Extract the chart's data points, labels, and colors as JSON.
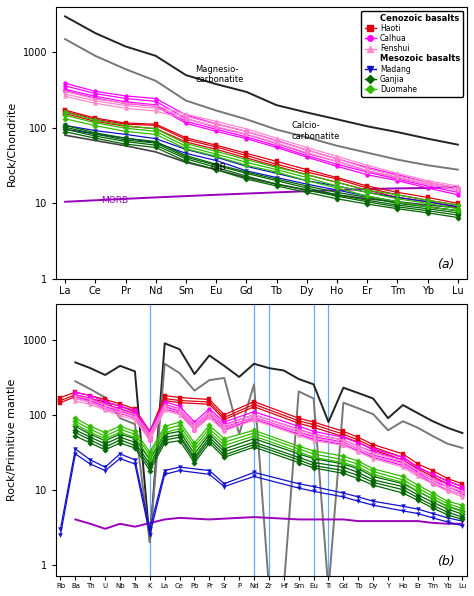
{
  "panel_a": {
    "xlabel_elements": [
      "La",
      "Ce",
      "Pr",
      "Nd",
      "Sm",
      "Eu",
      "Gd",
      "Tb",
      "Dy",
      "Ho",
      "Er",
      "Tm",
      "Yb",
      "Lu"
    ],
    "ylabel": "Rock/Chondrite",
    "panel_label": "(a)",
    "ylim": [
      1,
      4000
    ],
    "magnesio_carb": [
      3000,
      1800,
      1200,
      900,
      500,
      380,
      300,
      200,
      160,
      130,
      105,
      88,
      72,
      60
    ],
    "calcio_carb": [
      1500,
      900,
      600,
      420,
      230,
      170,
      130,
      95,
      75,
      58,
      47,
      38,
      32,
      28
    ],
    "morb": [
      10.5,
      11.0,
      11.5,
      12.0,
      12.5,
      13.0,
      13.5,
      14.0,
      14.5,
      15.0,
      15.5,
      15.8,
      16.0,
      16.5
    ],
    "oib": [
      80,
      68,
      58,
      48,
      35,
      28,
      22,
      18,
      15,
      13,
      11.5,
      10.5,
      9.5,
      8.8
    ],
    "haoti_samples": [
      [
        165,
        130,
        112,
        108,
        70,
        56,
        43,
        33,
        26,
        21,
        16,
        13,
        11,
        9.5
      ],
      [
        155,
        122,
        105,
        98,
        65,
        52,
        40,
        31,
        24,
        19,
        15,
        12,
        10.5,
        9
      ],
      [
        172,
        135,
        116,
        112,
        74,
        59,
        46,
        36,
        28,
        22,
        17,
        14,
        12,
        10
      ]
    ],
    "calhua_samples": [
      [
        360,
        285,
        245,
        225,
        133,
        102,
        82,
        62,
        46,
        36,
        27,
        22,
        18,
        15
      ],
      [
        325,
        262,
        222,
        202,
        122,
        96,
        76,
        58,
        43,
        33,
        26,
        21,
        17,
        14
      ],
      [
        390,
        305,
        265,
        245,
        148,
        113,
        90,
        68,
        51,
        39,
        30,
        24,
        19,
        16
      ],
      [
        310,
        248,
        210,
        194,
        115,
        90,
        72,
        55,
        41,
        31,
        24,
        20,
        16,
        13
      ]
    ],
    "fenshui_samples": [
      [
        305,
        242,
        212,
        197,
        152,
        122,
        97,
        73,
        55,
        42,
        32,
        25,
        20,
        17
      ],
      [
        282,
        228,
        198,
        182,
        142,
        112,
        90,
        67,
        51,
        39,
        29,
        23,
        19,
        16
      ],
      [
        262,
        212,
        182,
        167,
        132,
        104,
        83,
        63,
        47,
        36,
        27,
        22,
        18,
        15
      ]
    ],
    "madang_samples": [
      [
        108,
        92,
        82,
        72,
        52,
        41,
        31,
        25,
        20,
        17,
        14,
        12,
        10.5,
        9
      ],
      [
        96,
        83,
        73,
        64,
        46,
        37,
        27,
        22,
        18,
        15,
        12.5,
        10.5,
        9,
        8
      ]
    ],
    "ganjia_samples": [
      [
        108,
        86,
        73,
        66,
        43,
        33,
        26,
        21,
        17,
        14,
        12,
        10,
        9,
        8
      ],
      [
        96,
        78,
        66,
        59,
        39,
        30,
        23,
        18,
        15,
        12.5,
        10.5,
        9,
        8,
        7
      ],
      [
        89,
        73,
        61,
        55,
        36,
        28,
        21,
        17,
        14,
        11.5,
        9.8,
        8.5,
        7.5,
        6.5
      ],
      [
        102,
        83,
        69,
        63,
        41,
        32,
        25,
        20,
        16,
        13,
        11,
        9.5,
        8.5,
        7.5
      ]
    ],
    "duomahe_samples": [
      [
        162,
        127,
        107,
        97,
        62,
        49,
        38,
        30,
        24,
        19,
        15,
        13,
        11,
        9.5
      ],
      [
        147,
        117,
        99,
        90,
        57,
        45,
        35,
        28,
        22,
        17,
        14,
        11.5,
        10,
        8.5
      ],
      [
        132,
        107,
        90,
        82,
        53,
        42,
        32,
        26,
        20,
        16,
        12.5,
        10.5,
        9,
        8
      ]
    ]
  },
  "panel_b": {
    "xlabel_elements": [
      "Rb",
      "Ba",
      "Th",
      "U",
      "Nb",
      "Ta",
      "K",
      "La",
      "Ce",
      "Pb",
      "Pr",
      "Sr",
      "P",
      "Nd",
      "Zr",
      "Hf",
      "Sm",
      "Eu",
      "Ti",
      "Gd",
      "Tb",
      "Dy",
      "Y",
      "Ho",
      "Er",
      "Tm",
      "Yb",
      "Lu"
    ],
    "ylabel": "Rock/Primitive mantle",
    "panel_label": "(b)",
    "ylim": [
      0.7,
      3000
    ],
    "vline_indices": [
      6,
      13,
      14,
      17,
      18
    ],
    "magnesio_b": [
      null,
      500,
      420,
      340,
      450,
      380,
      2,
      900,
      750,
      350,
      620,
      450,
      320,
      480,
      420,
      390,
      300,
      255,
      80,
      230,
      195,
      165,
      90,
      135,
      105,
      82,
      67,
      57
    ],
    "calcio_b": [
      null,
      280,
      220,
      170,
      90,
      75,
      2,
      480,
      360,
      210,
      290,
      310,
      55,
      255,
      0.5,
      0.5,
      205,
      165,
      0.45,
      145,
      122,
      102,
      62,
      82,
      67,
      52,
      41,
      36
    ],
    "morb_b": [
      null,
      4,
      3.5,
      3,
      3.5,
      3.2,
      null,
      4,
      4.2,
      null,
      4,
      null,
      null,
      4.3,
      null,
      null,
      4,
      4,
      null,
      4,
      3.8,
      3.8,
      null,
      3.8,
      3.8,
      3.6,
      3.5,
      3.5
    ],
    "haoti_samples": [
      [
        170,
        200,
        180,
        160,
        140,
        120,
        60,
        180,
        170,
        null,
        160,
        100,
        null,
        150,
        null,
        null,
        90,
        80,
        null,
        60,
        50,
        40,
        null,
        30,
        22,
        18,
        14,
        12
      ],
      [
        155,
        185,
        165,
        148,
        130,
        110,
        55,
        165,
        155,
        null,
        148,
        92,
        null,
        138,
        null,
        null,
        83,
        74,
        null,
        55,
        46,
        37,
        null,
        27,
        20,
        16,
        13,
        11
      ],
      [
        145,
        175,
        155,
        138,
        120,
        102,
        50,
        155,
        145,
        null,
        138,
        86,
        null,
        128,
        null,
        null,
        77,
        68,
        null,
        51,
        43,
        34,
        null,
        25,
        19,
        15,
        12,
        10
      ]
    ],
    "calhua_samples": [
      [
        null,
        200,
        180,
        150,
        130,
        115,
        60,
        150,
        130,
        80,
        120,
        80,
        null,
        110,
        null,
        null,
        70,
        60,
        null,
        50,
        42,
        35,
        null,
        27,
        20,
        16,
        13,
        11
      ],
      [
        null,
        185,
        165,
        138,
        120,
        105,
        55,
        138,
        120,
        73,
        110,
        74,
        null,
        100,
        null,
        null,
        64,
        55,
        null,
        46,
        38,
        32,
        null,
        25,
        18,
        14,
        12,
        10
      ],
      [
        null,
        175,
        155,
        128,
        112,
        97,
        50,
        128,
        112,
        68,
        102,
        68,
        null,
        93,
        null,
        null,
        59,
        51,
        null,
        43,
        35,
        29,
        null,
        23,
        17,
        13,
        11,
        9
      ],
      [
        null,
        165,
        148,
        120,
        105,
        90,
        46,
        120,
        105,
        63,
        96,
        63,
        null,
        88,
        null,
        null,
        55,
        47,
        null,
        40,
        33,
        27,
        null,
        21,
        16,
        12,
        10,
        8.5
      ]
    ],
    "fenshui_samples": [
      [
        null,
        180,
        160,
        135,
        115,
        100,
        55,
        135,
        118,
        75,
        108,
        72,
        null,
        100,
        null,
        null,
        63,
        54,
        null,
        46,
        38,
        31,
        null,
        24,
        18,
        14,
        11,
        9.5
      ],
      [
        null,
        165,
        148,
        123,
        106,
        92,
        50,
        123,
        108,
        68,
        99,
        66,
        null,
        92,
        null,
        null,
        58,
        49,
        null,
        42,
        35,
        28,
        null,
        22,
        16,
        13,
        10,
        8.5
      ],
      [
        null,
        152,
        138,
        115,
        98,
        85,
        46,
        115,
        100,
        63,
        92,
        61,
        null,
        85,
        null,
        null,
        53,
        45,
        null,
        39,
        32,
        26,
        null,
        20,
        15,
        12,
        9.5,
        8
      ]
    ],
    "madang_samples": [
      [
        3,
        35,
        25,
        20,
        30,
        25,
        3,
        18,
        20,
        null,
        18,
        12,
        null,
        17,
        null,
        null,
        12,
        11,
        null,
        9,
        8,
        7,
        null,
        6,
        5.5,
        4.8,
        4.2,
        3.8
      ],
      [
        2.5,
        30,
        22,
        18,
        26,
        22,
        2.5,
        16,
        18,
        null,
        16,
        11,
        null,
        15,
        null,
        null,
        10.5,
        9.5,
        null,
        8,
        7,
        6.2,
        null,
        5.2,
        4.8,
        4.2,
        3.7,
        3.3
      ]
    ],
    "ganjia_samples": [
      [
        null,
        70,
        55,
        45,
        55,
        48,
        25,
        55,
        60,
        30,
        55,
        35,
        null,
        48,
        null,
        null,
        30,
        26,
        null,
        22,
        19,
        15,
        null,
        12,
        9.5,
        7.5,
        6,
        5.2
      ],
      [
        null,
        63,
        50,
        41,
        50,
        43,
        22,
        50,
        54,
        27,
        50,
        32,
        null,
        43,
        null,
        null,
        27,
        23,
        null,
        20,
        17,
        13.5,
        null,
        11,
        8.5,
        6.8,
        5.5,
        4.7
      ],
      [
        null,
        58,
        46,
        37,
        46,
        39,
        20,
        46,
        50,
        25,
        46,
        29,
        null,
        40,
        null,
        null,
        25,
        21,
        null,
        18,
        15.5,
        12.5,
        null,
        10,
        7.8,
        6.2,
        5,
        4.3
      ],
      [
        null,
        52,
        42,
        34,
        42,
        36,
        18,
        42,
        45,
        23,
        42,
        27,
        null,
        37,
        null,
        null,
        23,
        19.5,
        null,
        16.5,
        14,
        11.5,
        null,
        9,
        7.2,
        5.7,
        4.6,
        4
      ]
    ],
    "duomahe_samples": [
      [
        null,
        90,
        70,
        58,
        70,
        60,
        32,
        70,
        80,
        42,
        72,
        48,
        null,
        62,
        null,
        null,
        38,
        33,
        null,
        28,
        24,
        19,
        null,
        15,
        11.5,
        9,
        7,
        6.2
      ],
      [
        null,
        82,
        64,
        52,
        64,
        55,
        29,
        64,
        72,
        38,
        65,
        43,
        null,
        57,
        null,
        null,
        35,
        30,
        null,
        25,
        22,
        17.5,
        null,
        13.5,
        10.5,
        8.2,
        6.5,
        5.6
      ],
      [
        null,
        75,
        58,
        48,
        58,
        50,
        26,
        58,
        65,
        34,
        59,
        39,
        null,
        52,
        null,
        null,
        32,
        27,
        null,
        23,
        20,
        16,
        null,
        12.5,
        9.5,
        7.5,
        5.9,
        5.1
      ]
    ]
  },
  "legend": {
    "cenozoic_label": "Cenozoic basalts",
    "haoti_label": "Haoti",
    "calhua_label": "Calhua",
    "fenshui_label": "Fenshui",
    "mesozoic_label": "Mesozoic basalts",
    "madang_label": "Madang",
    "ganjia_label": "Ganjia",
    "duomahe_label": "Duomahe",
    "haoti_color": "#dd0011",
    "calhua_color": "#ff00ff",
    "fenshui_color": "#ff88cc",
    "madang_color": "#1111cc",
    "ganjia_color": "#006600",
    "duomahe_color": "#33bb00",
    "magnesio_color": "#222222",
    "calcio_color": "#777777",
    "morb_color": "#9900bb",
    "oib_color": "#444444"
  }
}
